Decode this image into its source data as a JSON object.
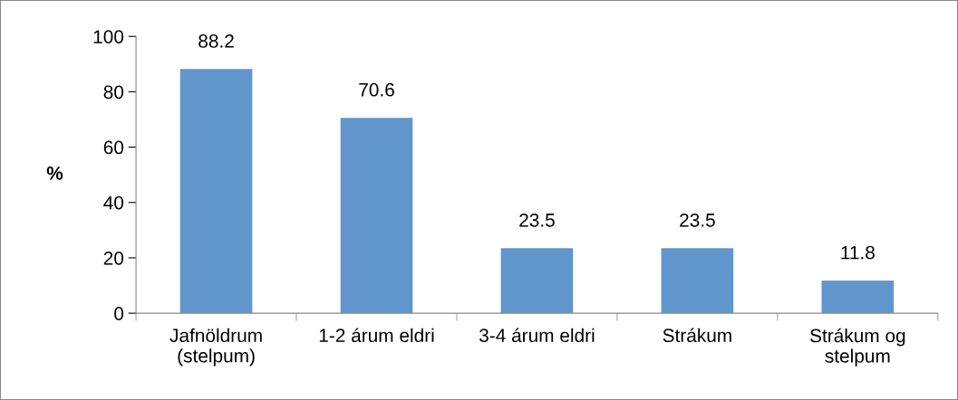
{
  "chart_data": {
    "type": "bar",
    "ylabel": "%",
    "categories": [
      "Jafnöldrum\n(stelpum)",
      "1-2 árum eldri",
      "3-4 árum eldri",
      "Strákum",
      "Strákum og\nstelpum"
    ],
    "values": [
      88.2,
      70.6,
      23.5,
      23.5,
      11.8
    ],
    "color": "#6096cc",
    "ylim": [
      0,
      100
    ],
    "yticks": [
      0,
      20,
      40,
      60,
      80,
      100
    ],
    "data_labels": true,
    "grid": false,
    "legend": false
  }
}
